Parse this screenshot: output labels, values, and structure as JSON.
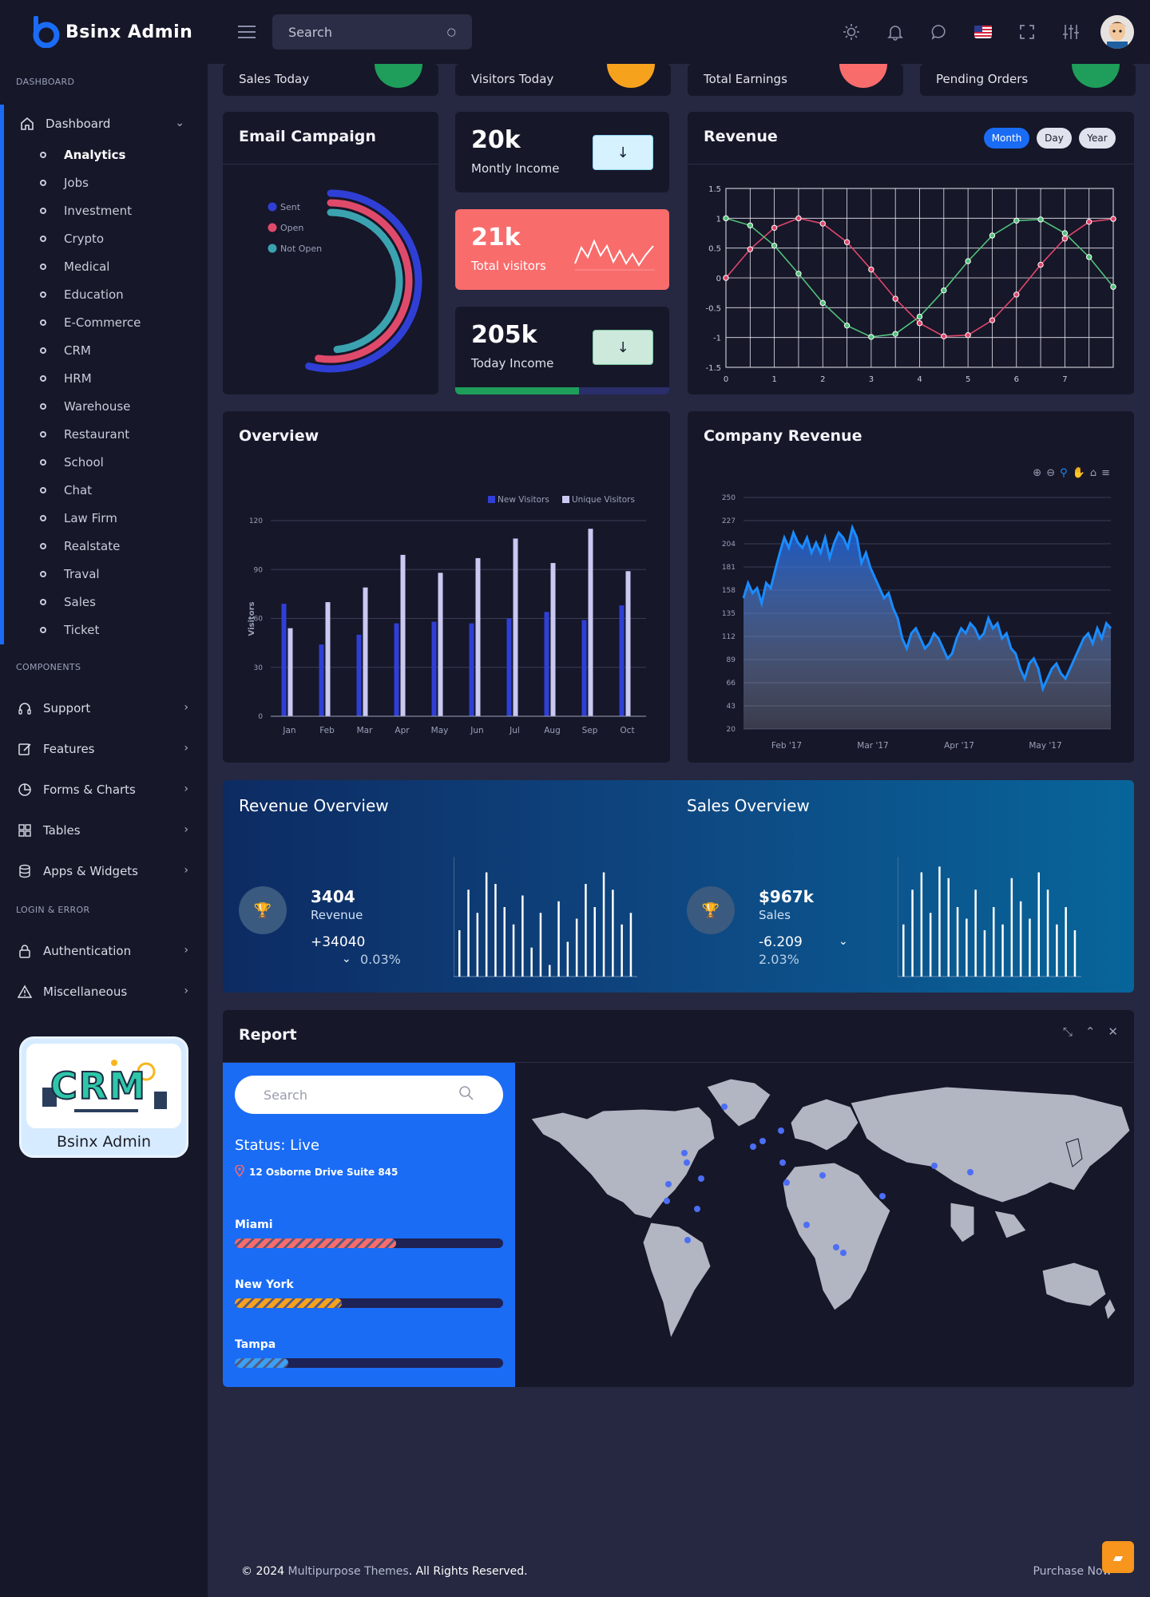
{
  "app": {
    "name": "Bsinx Admin"
  },
  "header": {
    "search_placeholder": "Search"
  },
  "sidebar": {
    "section_dashboard": "DASHBOARD",
    "dashboard": {
      "label": "Dashboard",
      "items": [
        "Analytics",
        "Jobs",
        "Investment",
        "Crypto",
        "Medical",
        "Education",
        "E-Commerce",
        "CRM",
        "HRM",
        "Warehouse",
        "Restaurant",
        "School",
        "Chat",
        "Law Firm",
        "Realstate",
        "Traval",
        "Sales",
        "Ticket"
      ]
    },
    "section_components": "COMPONENTS",
    "components": [
      {
        "label": "Support",
        "icon": "headphones-icon"
      },
      {
        "label": "Features",
        "icon": "edit-icon"
      },
      {
        "label": "Forms & Charts",
        "icon": "pie-chart-icon"
      },
      {
        "label": "Tables",
        "icon": "grid-icon"
      },
      {
        "label": "Apps & Widgets",
        "icon": "database-icon"
      }
    ],
    "section_login": "LOGIN & ERROR",
    "login": [
      {
        "label": "Authentication",
        "icon": "lock-icon"
      },
      {
        "label": "Miscellaneous",
        "icon": "alert-icon"
      }
    ],
    "card": {
      "label": "Bsinx Admin",
      "image_text": "CRM"
    }
  },
  "stats": [
    {
      "label": "Sales Today",
      "color": "#1e9e5a"
    },
    {
      "label": "Visitors Today",
      "color": "#f7a21d"
    },
    {
      "label": "Total Earnings",
      "color": "#f96c6c"
    },
    {
      "label": "Pending Orders",
      "color": "#1e9e5a"
    }
  ],
  "email_campaign": {
    "title": "Email Campaign",
    "legend": [
      {
        "name": "Sent",
        "color": "#2f3fd6",
        "value": 0.72
      },
      {
        "name": "Open",
        "color": "#e04a6a",
        "value": 0.7
      },
      {
        "name": "Not Open",
        "color": "#3ba3b0",
        "value": 0.66
      }
    ]
  },
  "mini_cards": [
    {
      "value": "20k",
      "label": "Montly Income",
      "btn_color": "#d6f2ff"
    },
    {
      "value": "21k",
      "label": "Total visitors"
    },
    {
      "value": "205k",
      "label": "Today Income",
      "btn_color": "#cce9dc",
      "progress": 0.58
    }
  ],
  "revenue": {
    "title": "Revenue",
    "filters": [
      "Month",
      "Day",
      "Year"
    ],
    "active": "Month"
  },
  "overview": {
    "title": "Overview"
  },
  "company_revenue": {
    "title": "Company Revenue"
  },
  "revenue_overview": {
    "title": "Revenue Overview",
    "value": "3404",
    "label": "Revenue",
    "change": "+34040",
    "pct": "0.03%"
  },
  "sales_overview": {
    "title": "Sales Overview",
    "value": "$967k",
    "label": "Sales",
    "change": "-6.209",
    "pct": "2.03%"
  },
  "report": {
    "title": "Report",
    "search_placeholder": "Search",
    "status": "Status: Live",
    "address": "12 Osborne Drive Suite 845",
    "cities": [
      {
        "name": "Miami",
        "value": 0.6,
        "color": "#f96c6c"
      },
      {
        "name": "New York",
        "value": 0.4,
        "color": "#f7a21d"
      },
      {
        "name": "Tampa",
        "value": 0.2,
        "color": "#3aa0f5"
      }
    ]
  },
  "footer": {
    "year": "© 2024",
    "brand": "Multipurpose Themes",
    "rights": ". All Rights Reserved.",
    "purchase": "Purchase Now"
  },
  "chart_data": [
    {
      "type": "line",
      "title": "Revenue",
      "x_ticks": [
        0,
        1,
        2,
        3,
        4,
        5,
        6,
        7
      ],
      "y_ticks": [
        1.5,
        1.0,
        0.5,
        0.0,
        -0.5,
        -1.0,
        -1.5
      ],
      "ylim": [
        -1.5,
        1.5
      ],
      "xlim": [
        0,
        8
      ],
      "series": [
        {
          "color": "#e0466c",
          "x": [
            0,
            0.5,
            1,
            1.5,
            2,
            2.5,
            3,
            3.5,
            4,
            4.5,
            5,
            5.5,
            6,
            6.5,
            7,
            7.5,
            8
          ],
          "y": [
            0,
            0.48,
            0.84,
            1.0,
            0.91,
            0.6,
            0.14,
            -0.35,
            -0.76,
            -0.98,
            -0.96,
            -0.71,
            -0.28,
            0.22,
            0.66,
            0.94,
            0.99
          ]
        },
        {
          "color": "#52c27a",
          "x": [
            0,
            0.5,
            1,
            1.5,
            2,
            2.5,
            3,
            3.5,
            4,
            4.5,
            5,
            5.5,
            6,
            6.5,
            7,
            7.5,
            8
          ],
          "y": [
            1.0,
            0.88,
            0.54,
            0.07,
            -0.42,
            -0.8,
            -0.99,
            -0.94,
            -0.65,
            -0.21,
            0.28,
            0.71,
            0.96,
            0.98,
            0.75,
            0.35,
            -0.15
          ]
        }
      ]
    },
    {
      "type": "bar",
      "title": "Overview",
      "ylabel": "Visitors",
      "categories": [
        "Jan",
        "Feb",
        "Mar",
        "Apr",
        "May",
        "Jun",
        "Jul",
        "Aug",
        "Sep",
        "Oct"
      ],
      "y_ticks": [
        0,
        30,
        60,
        90,
        120
      ],
      "ylim": [
        0,
        120
      ],
      "series": [
        {
          "name": "New Visitors",
          "color": "#2f3fd6",
          "values": [
            69,
            44,
            50,
            57,
            58,
            57,
            60,
            64,
            59,
            68
          ]
        },
        {
          "name": "Unique Visitors",
          "color": "#c9c9f2",
          "values": [
            54,
            70,
            79,
            99,
            88,
            97,
            109,
            94,
            115,
            89
          ]
        }
      ]
    },
    {
      "type": "area",
      "title": "Company Revenue",
      "x_ticks": [
        "Feb '17",
        "Mar '17",
        "Apr '17",
        "May '17"
      ],
      "y_ticks": [
        250,
        227,
        204,
        181,
        158,
        135,
        112,
        89,
        66,
        43,
        20
      ],
      "ylim": [
        20,
        250
      ],
      "values": [
        150,
        165,
        155,
        160,
        145,
        165,
        160,
        178,
        195,
        210,
        200,
        215,
        205,
        200,
        210,
        195,
        205,
        195,
        210,
        190,
        205,
        215,
        210,
        200,
        220,
        210,
        185,
        195,
        180,
        170,
        160,
        150,
        155,
        140,
        130,
        110,
        100,
        115,
        120,
        110,
        100,
        105,
        115,
        110,
        100,
        90,
        95,
        110,
        120,
        115,
        125,
        120,
        110,
        115,
        130,
        120,
        125,
        110,
        115,
        100,
        95,
        80,
        70,
        85,
        90,
        80,
        60,
        70,
        80,
        85,
        75,
        70,
        80,
        90,
        100,
        110,
        115,
        105,
        120,
        110,
        125,
        120
      ]
    },
    {
      "type": "bar",
      "title": "Revenue Overview",
      "values": [
        40,
        75,
        55,
        90,
        80,
        60,
        45,
        70,
        25,
        55,
        10,
        65,
        30,
        50,
        80,
        60,
        90,
        75,
        45,
        55
      ]
    },
    {
      "type": "bar",
      "title": "Sales Overview",
      "values": [
        45,
        75,
        90,
        55,
        95,
        85,
        60,
        50,
        75,
        40,
        60,
        45,
        85,
        65,
        50,
        90,
        75,
        45,
        60,
        40
      ]
    }
  ]
}
